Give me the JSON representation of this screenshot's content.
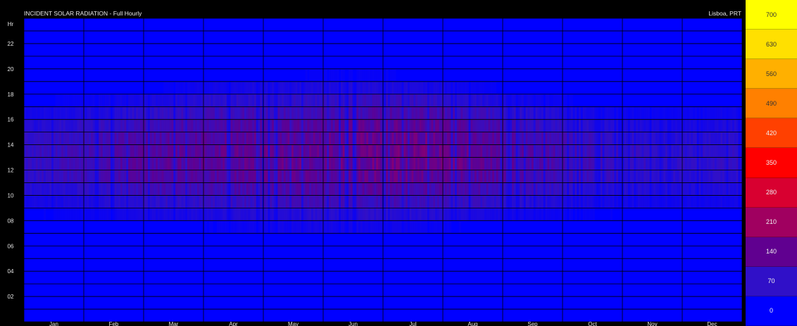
{
  "chart_data": {
    "type": "heatmap",
    "title": "INCIDENT SOLAR RADIATION - Full Hourly",
    "location": "Lisboa, PRT",
    "y_unit_label": "Hr",
    "x_categories": [
      "Jan",
      "Feb",
      "Mar",
      "Apr",
      "May",
      "Jun",
      "Jul",
      "Aug",
      "Sep",
      "Oct",
      "Nov",
      "Dec"
    ],
    "y_tick_labels": [
      "22",
      "20",
      "18",
      "16",
      "14",
      "12",
      "10",
      "08",
      "06",
      "04",
      "02"
    ],
    "y_range": [
      0,
      24
    ],
    "legend_values": [
      700,
      630,
      560,
      490,
      420,
      350,
      280,
      210,
      140,
      70,
      0
    ],
    "legend_colors": [
      "#ffff00",
      "#ffe000",
      "#ffb000",
      "#ff8000",
      "#ff4000",
      "#ff0000",
      "#d80030",
      "#a00060",
      "#600090",
      "#3010c8",
      "#0000ff"
    ],
    "monthly_peak_values": [
      75,
      95,
      125,
      130,
      140,
      140,
      155,
      150,
      130,
      100,
      80,
      65
    ],
    "monthly_sunrise_hour": [
      8.3,
      8.0,
      7.5,
      7.3,
      6.8,
      6.6,
      6.8,
      7.2,
      7.6,
      8.0,
      8.3,
      8.4
    ],
    "monthly_sunset_hour": [
      17.6,
      18.0,
      18.5,
      19.2,
      19.6,
      19.8,
      19.8,
      19.3,
      18.6,
      17.9,
      17.3,
      17.2
    ],
    "grid": true
  }
}
